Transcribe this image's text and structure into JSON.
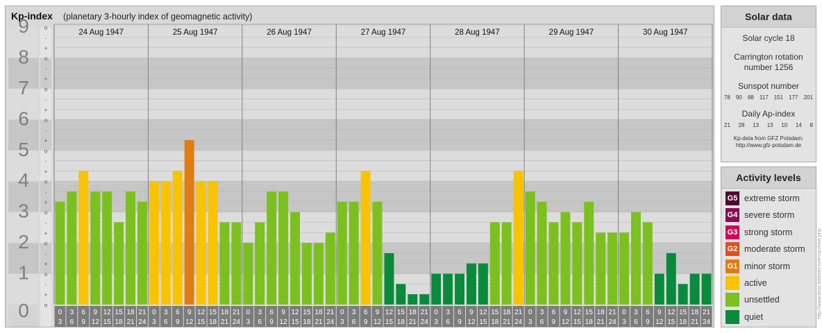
{
  "header": {
    "title": "Kp-index",
    "subtitle": "(planetary 3-hourly index of geomagnetic activity)"
  },
  "chart_data": {
    "type": "bar",
    "ylim": [
      0,
      9
    ],
    "y_major_labels": [
      "0",
      "1",
      "2",
      "3",
      "4",
      "5",
      "6",
      "7",
      "8",
      "9"
    ],
    "y_minor_labels": [
      "o",
      "+",
      "-",
      "o"
    ],
    "days": [
      "24 Aug 1947",
      "25 Aug 1947",
      "26 Aug 1947",
      "27 Aug 1947",
      "28 Aug 1947",
      "29 Aug 1947",
      "30 Aug 1947"
    ],
    "interval_start_hours": [
      "0",
      "3",
      "6",
      "9",
      "12",
      "15",
      "18",
      "21"
    ],
    "interval_end_hours": [
      "3",
      "6",
      "9",
      "12",
      "15",
      "18",
      "21",
      "24"
    ],
    "values": [
      [
        3.333,
        3.667,
        4.333,
        3.667,
        3.667,
        2.667,
        3.667,
        3.333
      ],
      [
        4.0,
        4.0,
        4.333,
        5.333,
        4.0,
        4.0,
        2.667,
        2.667
      ],
      [
        2.0,
        2.667,
        3.667,
        3.667,
        3.0,
        2.0,
        2.0,
        2.333
      ],
      [
        3.333,
        3.333,
        4.333,
        3.333,
        1.667,
        0.667,
        0.333,
        0.333
      ],
      [
        1.0,
        1.0,
        1.0,
        1.333,
        1.333,
        2.667,
        2.667,
        4.333
      ],
      [
        3.667,
        3.333,
        2.667,
        3.0,
        2.667,
        3.333,
        2.333,
        2.333
      ],
      [
        2.333,
        3.0,
        2.667,
        1.0,
        1.667,
        0.667,
        1.0,
        1.0
      ]
    ],
    "colors": {
      "quiet": "#0a8a3c",
      "unsettled": "#7cc01f",
      "active": "#f8c300",
      "G1": "#e27c12",
      "G2": "#e14f1c",
      "G3": "#cc0a5a",
      "G4": "#8a0a55",
      "G5": "#4d0a2e"
    }
  },
  "solar": {
    "title": "Solar data",
    "cycle": "Solar cycle 18",
    "carrington_line1": "Carrington rotation",
    "carrington_line2": "number 1256",
    "sunspot_title": "Sunspot number",
    "sunspot_values": [
      "78",
      "90",
      "88",
      "117",
      "151",
      "177",
      "201"
    ],
    "ap_title": "Daily Ap-index",
    "ap_values": [
      "21",
      "28",
      "13",
      "13",
      "10",
      "14",
      "8"
    ],
    "credit_line1": "Kp-data from GFZ Potsdam:",
    "credit_line2": "http://www.gfz-potsdam.de"
  },
  "activity": {
    "title": "Activity levels",
    "levels": [
      {
        "code": "G5",
        "label": "extreme storm",
        "color": "#4d0a2e"
      },
      {
        "code": "G4",
        "label": "severe storm",
        "color": "#8a0a55"
      },
      {
        "code": "G3",
        "label": "strong storm",
        "color": "#cc0a5a"
      },
      {
        "code": "G2",
        "label": "moderate storm",
        "color": "#e14f1c"
      },
      {
        "code": "G1",
        "label": "minor storm",
        "color": "#e27c12"
      },
      {
        "code": "",
        "label": "active",
        "color": "#f8c300"
      },
      {
        "code": "",
        "label": "unsettled",
        "color": "#7cc01f"
      },
      {
        "code": "",
        "label": "quiet",
        "color": "#0a8a3c"
      }
    ]
  },
  "side_credit": "http://www.tesis.lebedev.ru/en/archive.php"
}
